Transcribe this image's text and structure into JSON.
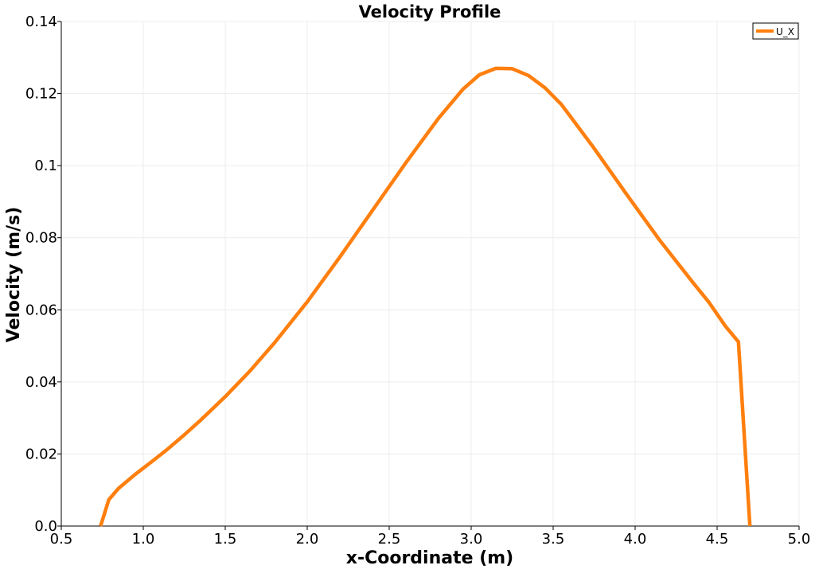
{
  "chart_data": {
    "type": "line",
    "title": "Velocity Profile",
    "xlabel": "x-Coordinate (m)",
    "ylabel": "Velocity (m/s)",
    "xlim": [
      0.5,
      5.0
    ],
    "ylim": [
      0.0,
      0.14
    ],
    "x_ticks": [
      "0.5",
      "1.0",
      "1.5",
      "2.0",
      "2.5",
      "3.0",
      "3.5",
      "4.0",
      "4.5",
      "5.0"
    ],
    "y_ticks": [
      "0.0",
      "0.02",
      "0.04",
      "0.06",
      "0.08",
      "0.1",
      "0.12",
      "0.14"
    ],
    "grid": true,
    "legend_position": "top-right",
    "series": [
      {
        "name": "U_X",
        "color": "#ff7f0e",
        "x": [
          0.74,
          0.79,
          0.85,
          0.95,
          1.05,
          1.15,
          1.25,
          1.35,
          1.5,
          1.65,
          1.8,
          2.0,
          2.2,
          2.4,
          2.6,
          2.8,
          2.95,
          3.05,
          3.15,
          3.25,
          3.35,
          3.45,
          3.55,
          3.75,
          3.95,
          4.15,
          4.35,
          4.45,
          4.55,
          4.63,
          4.7
        ],
        "y": [
          0.0,
          0.0073,
          0.0105,
          0.0143,
          0.0178,
          0.0214,
          0.0253,
          0.0294,
          0.0359,
          0.043,
          0.0508,
          0.0622,
          0.0747,
          0.0877,
          0.1007,
          0.1131,
          0.1212,
          0.1252,
          0.127,
          0.1269,
          0.125,
          0.1216,
          0.117,
          0.1048,
          0.0919,
          0.0793,
          0.0677,
          0.0621,
          0.0555,
          0.0511,
          0.0
        ]
      }
    ]
  }
}
